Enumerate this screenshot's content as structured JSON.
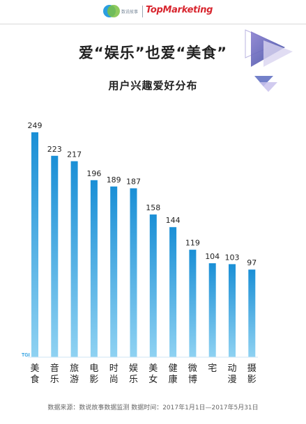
{
  "header": {
    "brand_sub": "数说故事",
    "partner_logo": "TopMarketing"
  },
  "title": "爱“娱乐”也爱“美食”",
  "subtitle": "用户兴趣爱好分布",
  "footer": "数据来源：数说故事数据监测  数据时间：2017年1月1日—2017年5月31日",
  "colors": {
    "bar_top": "#1a8fd6",
    "bar_bottom": "#8fd2f2",
    "axis_label": "#2a9ee0",
    "accent_purple": "#6a5fb0"
  },
  "chart_data": {
    "type": "bar",
    "ylabel": "TGI",
    "categories": [
      "美食",
      "音乐",
      "旅游",
      "电影",
      "时尚",
      "娱乐",
      "美女",
      "健康",
      "微博",
      "宅",
      "动漫",
      "摄影"
    ],
    "values": [
      249,
      223,
      217,
      196,
      189,
      187,
      158,
      144,
      119,
      104,
      103,
      97
    ],
    "grid": false,
    "legend": "none"
  }
}
